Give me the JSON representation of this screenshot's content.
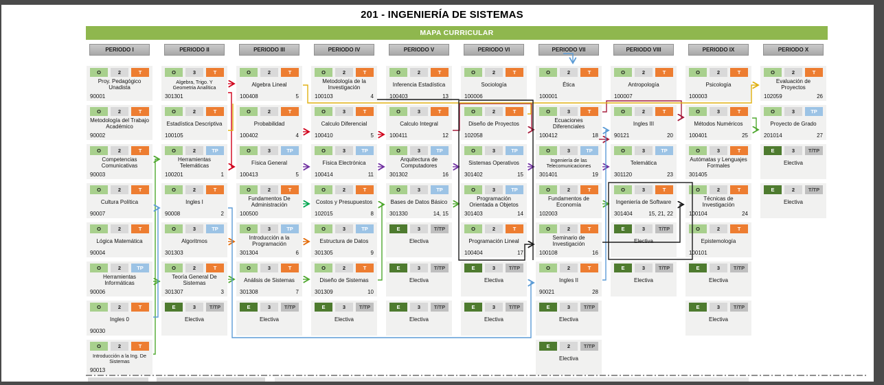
{
  "title": "201 - INGENIERÍA DE SISTEMAS",
  "banner": {
    "label": "MAPA CURRICULAR",
    "color": "#8fb74e"
  },
  "legend_colors": {
    "obligatoria_badge": "#a8d08d",
    "electiva_badge": "#4e7b2f",
    "credits_badge": "#d9d9d9",
    "teorica_badge": "#ed7d31",
    "teorico_practica_badge": "#9cc3e5",
    "t_tp_badge": "#bfbfbf",
    "card_background": "#f1f1f0",
    "period_header": "#b3b3b3"
  },
  "periods": [
    {
      "label": "PERIODO I",
      "courses": [
        {
          "row": 1,
          "type": "O",
          "credits": "2",
          "mode": "T",
          "name": "Proy. Pedagógico Unadista",
          "code": "90001",
          "seq": ""
        },
        {
          "row": 2,
          "type": "O",
          "credits": "2",
          "mode": "T",
          "name": "Metodología del Trabajo Académico",
          "code": "90002",
          "seq": ""
        },
        {
          "row": 3,
          "type": "O",
          "credits": "2",
          "mode": "T",
          "name": "Competencias Comunicativas",
          "code": "90003",
          "seq": ""
        },
        {
          "row": 4,
          "type": "O",
          "credits": "2",
          "mode": "T",
          "name": "Cultura Política",
          "code": "90007",
          "seq": ""
        },
        {
          "row": 5,
          "type": "O",
          "credits": "2",
          "mode": "T",
          "name": "Lógica Matemática",
          "code": "90004",
          "seq": ""
        },
        {
          "row": 6,
          "type": "O",
          "credits": "2",
          "mode": "TP",
          "name": "Herramientas Informáticas",
          "code": "90006",
          "seq": ""
        },
        {
          "row": 7,
          "type": "O",
          "credits": "2",
          "mode": "T",
          "name": "Ingles 0",
          "code": "90030",
          "seq": ""
        },
        {
          "row": 8,
          "type": "O",
          "credits": "2",
          "mode": "T",
          "name": "Introducción a la Ing. De Sistemas",
          "code": "90013",
          "seq": ""
        }
      ]
    },
    {
      "label": "PERIODO II",
      "courses": [
        {
          "row": 1,
          "type": "O",
          "credits": "3",
          "mode": "T",
          "name": "Algebra, Trigo. Y Geometria Analítica",
          "code": "301301",
          "seq": ""
        },
        {
          "row": 2,
          "type": "O",
          "credits": "2",
          "mode": "T",
          "name": "Estadística Descriptiva",
          "code": "100105",
          "seq": ""
        },
        {
          "row": 3,
          "type": "O",
          "credits": "2",
          "mode": "TP",
          "name": "Herramientas Telemáticas",
          "code": "100201",
          "seq": "1"
        },
        {
          "row": 4,
          "type": "O",
          "credits": "2",
          "mode": "T",
          "name": "Ingles I",
          "code": "90008",
          "seq": "2"
        },
        {
          "row": 5,
          "type": "O",
          "credits": "3",
          "mode": "TP",
          "name": "Algoritmos",
          "code": "301303",
          "seq": ""
        },
        {
          "row": 6,
          "type": "O",
          "credits": "2",
          "mode": "T",
          "name": "Teoría General De Sistemas",
          "code": "301307",
          "seq": "3"
        },
        {
          "row": 7,
          "type": "E",
          "credits": "3",
          "mode": "T/TP",
          "name": "Electiva",
          "code": "",
          "seq": ""
        }
      ]
    },
    {
      "label": "PERIODO III",
      "courses": [
        {
          "row": 1,
          "type": "O",
          "credits": "2",
          "mode": "T",
          "name": "Algebra Lineal",
          "code": "100408",
          "seq": "5"
        },
        {
          "row": 2,
          "type": "O",
          "credits": "2",
          "mode": "T",
          "name": "Probabilidad",
          "code": "100402",
          "seq": "4"
        },
        {
          "row": 3,
          "type": "O",
          "credits": "3",
          "mode": "TP",
          "name": "Física General",
          "code": "100413",
          "seq": "5"
        },
        {
          "row": 4,
          "type": "O",
          "credits": "2",
          "mode": "T",
          "name": "Fundamentos De Administración",
          "code": "100500",
          "seq": ""
        },
        {
          "row": 5,
          "type": "O",
          "credits": "3",
          "mode": "TP",
          "name": "Introducción a la Programación",
          "code": "301304",
          "seq": "6"
        },
        {
          "row": 6,
          "type": "O",
          "credits": "3",
          "mode": "T",
          "name": "Análisis de Sistemas",
          "code": "301308",
          "seq": "7"
        },
        {
          "row": 7,
          "type": "E",
          "credits": "3",
          "mode": "T/TP",
          "name": "Electiva",
          "code": "",
          "seq": ""
        }
      ]
    },
    {
      "label": "PERIODO IV",
      "courses": [
        {
          "row": 1,
          "type": "O",
          "credits": "2",
          "mode": "T",
          "name": "Metodología de la Investigación",
          "code": "100103",
          "seq": "4"
        },
        {
          "row": 2,
          "type": "O",
          "credits": "3",
          "mode": "T",
          "name": "Calculo Diferencial",
          "code": "100410",
          "seq": "5"
        },
        {
          "row": 3,
          "type": "O",
          "credits": "3",
          "mode": "TP",
          "name": "Física Electrónica",
          "code": "100414",
          "seq": "11"
        },
        {
          "row": 4,
          "type": "O",
          "credits": "2",
          "mode": "T",
          "name": "Costos y Presupuestos",
          "code": "102015",
          "seq": "8"
        },
        {
          "row": 5,
          "type": "O",
          "credits": "3",
          "mode": "TP",
          "name": "Estructura de Datos",
          "code": "301305",
          "seq": "9"
        },
        {
          "row": 6,
          "type": "O",
          "credits": "2",
          "mode": "T",
          "name": "Diseño de Sistemas",
          "code": "301309",
          "seq": "10"
        },
        {
          "row": 7,
          "type": "E",
          "credits": "3",
          "mode": "T/TP",
          "name": "Electiva",
          "code": "",
          "seq": ""
        }
      ]
    },
    {
      "label": "PERIODO V",
      "courses": [
        {
          "row": 1,
          "type": "O",
          "credits": "2",
          "mode": "T",
          "name": "Inferencia Estadística",
          "code": "100403",
          "seq": "13"
        },
        {
          "row": 2,
          "type": "O",
          "credits": "3",
          "mode": "T",
          "name": "Calculo Integral",
          "code": "100411",
          "seq": "12"
        },
        {
          "row": 3,
          "type": "O",
          "credits": "3",
          "mode": "TP",
          "name": "Arquitectura de Computadores",
          "code": "301302",
          "seq": "16"
        },
        {
          "row": 4,
          "type": "O",
          "credits": "3",
          "mode": "TP",
          "name": "Bases de Datos Básico",
          "code": "301330",
          "seq": "14, 15"
        },
        {
          "row": 5,
          "type": "E",
          "credits": "3",
          "mode": "T/TP",
          "name": "Electiva",
          "code": "",
          "seq": ""
        },
        {
          "row": 6,
          "type": "E",
          "credits": "3",
          "mode": "T/TP",
          "name": "Electiva",
          "code": "",
          "seq": ""
        },
        {
          "row": 7,
          "type": "E",
          "credits": "3",
          "mode": "T/TP",
          "name": "Electiva",
          "code": "",
          "seq": ""
        }
      ]
    },
    {
      "label": "PERIODO VI",
      "courses": [
        {
          "row": 1,
          "type": "O",
          "credits": "2",
          "mode": "T",
          "name": "Sociología",
          "code": "100006",
          "seq": ""
        },
        {
          "row": 2,
          "type": "O",
          "credits": "2",
          "mode": "T",
          "name": "Diseño de Proyectos",
          "code": "102058",
          "seq": ""
        },
        {
          "row": 3,
          "type": "O",
          "credits": "3",
          "mode": "TP",
          "name": "Sistemas Operativos",
          "code": "301402",
          "seq": "15"
        },
        {
          "row": 4,
          "type": "O",
          "credits": "3",
          "mode": "TP",
          "name": "Programación Orientada a Objetos",
          "code": "301403",
          "seq": "14"
        },
        {
          "row": 5,
          "type": "O",
          "credits": "2",
          "mode": "T",
          "name": "Programación Lineal",
          "code": "100404",
          "seq": "17"
        },
        {
          "row": 6,
          "type": "E",
          "credits": "3",
          "mode": "T/TP",
          "name": "Electiva",
          "code": "",
          "seq": ""
        },
        {
          "row": 7,
          "type": "E",
          "credits": "3",
          "mode": "T/TP",
          "name": "Electiva",
          "code": "",
          "seq": ""
        }
      ]
    },
    {
      "label": "PERIODO VII",
      "courses": [
        {
          "row": 1,
          "type": "O",
          "credits": "2",
          "mode": "T",
          "name": "Ética",
          "code": "100001",
          "seq": ""
        },
        {
          "row": 2,
          "type": "O",
          "credits": "3",
          "mode": "T",
          "name": "Ecuaciones Diferenciales",
          "code": "100412",
          "seq": "18"
        },
        {
          "row": 3,
          "type": "O",
          "credits": "3",
          "mode": "TP",
          "name": "Ingeniería de las Telecomunicaciones",
          "code": "301401",
          "seq": "19"
        },
        {
          "row": 4,
          "type": "O",
          "credits": "2",
          "mode": "T",
          "name": "Fundamentos de Economía",
          "code": "102003",
          "seq": ""
        },
        {
          "row": 5,
          "type": "O",
          "credits": "2",
          "mode": "T",
          "name": "Seminario de Investigación",
          "code": "100108",
          "seq": "16"
        },
        {
          "row": 6,
          "type": "O",
          "credits": "2",
          "mode": "T",
          "name": "Ingles II",
          "code": "90021",
          "seq": "28"
        },
        {
          "row": 7,
          "type": "E",
          "credits": "3",
          "mode": "T/TP",
          "name": "Electiva",
          "code": "",
          "seq": ""
        },
        {
          "row": 8,
          "type": "E",
          "credits": "2",
          "mode": "T/TP",
          "name": "Electiva",
          "code": "",
          "seq": ""
        }
      ]
    },
    {
      "label": "PERIODO VIII",
      "courses": [
        {
          "row": 1,
          "type": "O",
          "credits": "2",
          "mode": "T",
          "name": "Antropología",
          "code": "100007",
          "seq": ""
        },
        {
          "row": 2,
          "type": "O",
          "credits": "2",
          "mode": "T",
          "name": "Ingles III",
          "code": "90121",
          "seq": "20"
        },
        {
          "row": 3,
          "type": "O",
          "credits": "3",
          "mode": "TP",
          "name": "Telemática",
          "code": "301120",
          "seq": "23"
        },
        {
          "row": 4,
          "type": "O",
          "credits": "3",
          "mode": "T",
          "name": "Ingeniería de Software",
          "code": "301404",
          "seq": "15, 21, 22"
        },
        {
          "row": 5,
          "type": "E",
          "credits": "3",
          "mode": "T/TP",
          "name": "Electiva",
          "code": "",
          "seq": ""
        },
        {
          "row": 6,
          "type": "E",
          "credits": "3",
          "mode": "T/TP",
          "name": "Electiva",
          "code": "",
          "seq": ""
        }
      ]
    },
    {
      "label": "PERIODO IX",
      "courses": [
        {
          "row": 1,
          "type": "O",
          "credits": "2",
          "mode": "T",
          "name": "Psicología",
          "code": "100003",
          "seq": ""
        },
        {
          "row": 2,
          "type": "O",
          "credits": "3",
          "mode": "T",
          "name": "Métodos Numéricos",
          "code": "100401",
          "seq": "25"
        },
        {
          "row": 3,
          "type": "O",
          "credits": "3",
          "mode": "T",
          "name": "Autómatas y Lenguajes Formales",
          "code": "301405",
          "seq": ""
        },
        {
          "row": 4,
          "type": "O",
          "credits": "2",
          "mode": "T",
          "name": "Técnicas de Investigación",
          "code": "100104",
          "seq": "24"
        },
        {
          "row": 5,
          "type": "O",
          "credits": "2",
          "mode": "T",
          "name": "Epistemología",
          "code": "100101",
          "seq": ""
        },
        {
          "row": 6,
          "type": "E",
          "credits": "3",
          "mode": "T/TP",
          "name": "Electiva",
          "code": "",
          "seq": ""
        },
        {
          "row": 7,
          "type": "E",
          "credits": "3",
          "mode": "T/TP",
          "name": "Electiva",
          "code": "",
          "seq": ""
        }
      ]
    },
    {
      "label": "PERIODO X",
      "courses": [
        {
          "row": 1,
          "type": "O",
          "credits": "2",
          "mode": "T",
          "name": "Evaluación de Proyectos",
          "code": "102059",
          "seq": "26"
        },
        {
          "row": 2,
          "type": "O",
          "credits": "3",
          "mode": "TP",
          "name": "Proyecto de Grado",
          "code": "201014",
          "seq": "27"
        },
        {
          "row": 3,
          "type": "E",
          "credits": "3",
          "mode": "T/TP",
          "name": "Electiva",
          "code": "",
          "seq": ""
        },
        {
          "row": 4,
          "type": "E",
          "credits": "2",
          "mode": "T/TP",
          "name": "Electiva",
          "code": "",
          "seq": ""
        }
      ]
    }
  ]
}
